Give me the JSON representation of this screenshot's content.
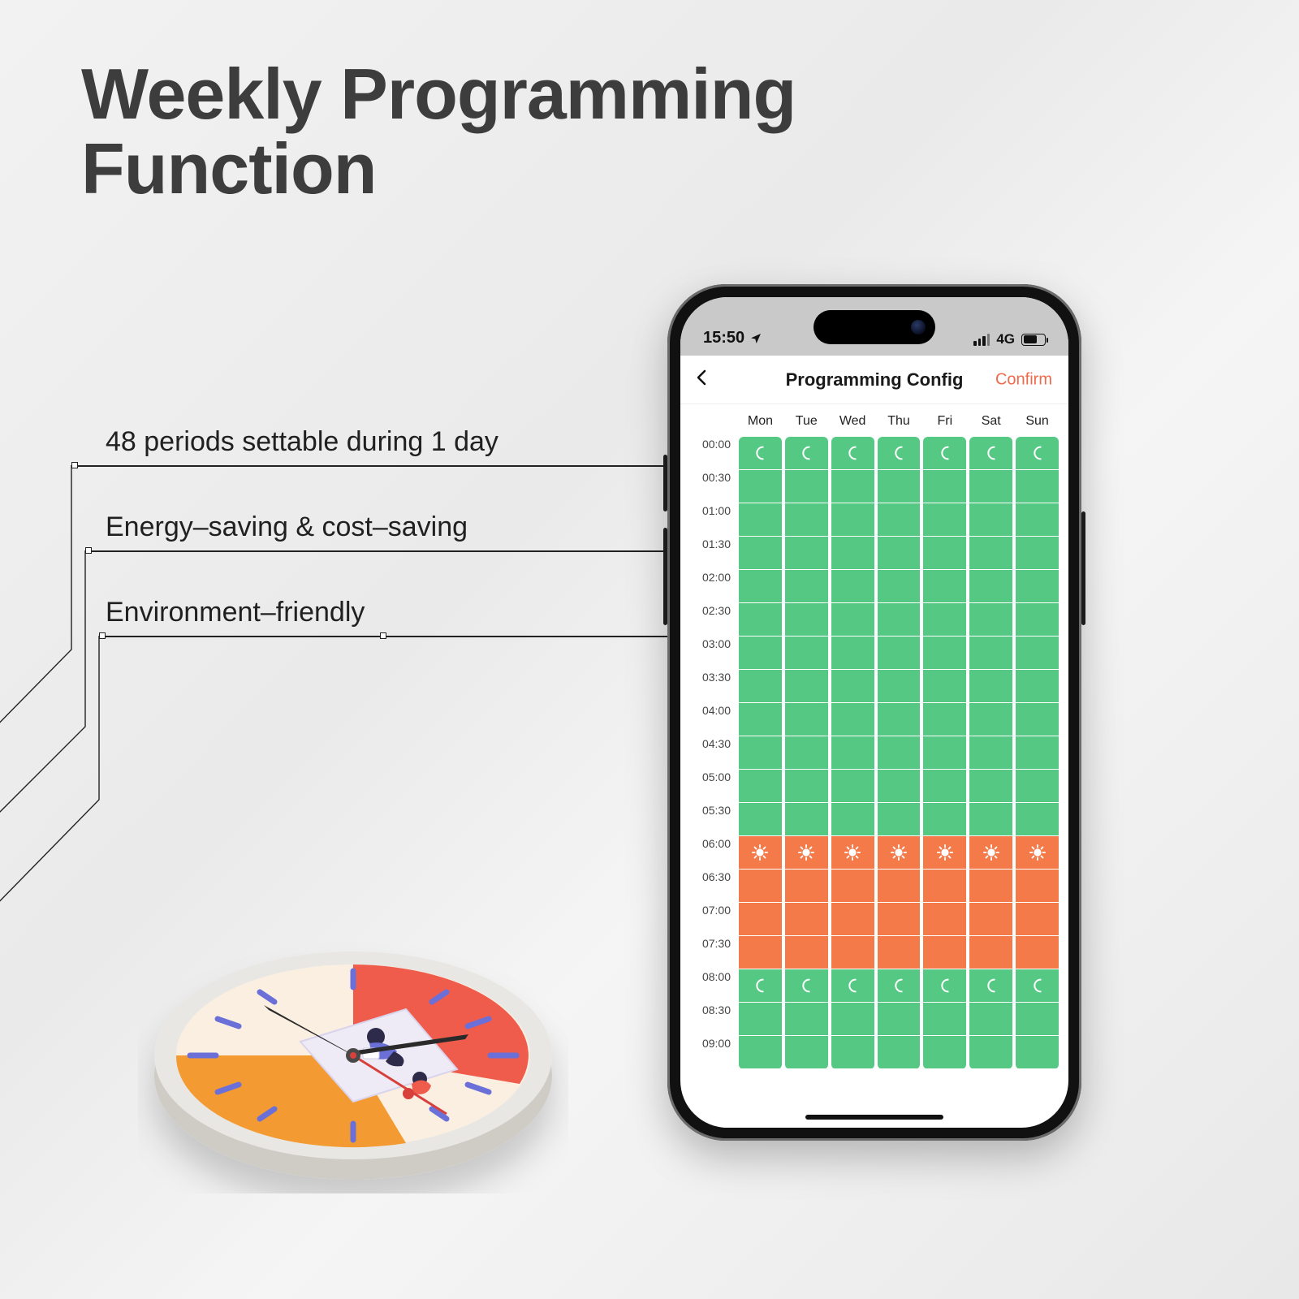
{
  "title_line1": "Weekly Programming",
  "title_line2": "Function",
  "callouts": [
    "48 periods settable during 1 day",
    "Energy–saving & cost–saving",
    "Environment–friendly"
  ],
  "phone": {
    "status_time": "15:50",
    "status_network": "4G",
    "nav_title": "Programming Config",
    "nav_confirm": "Confirm",
    "days": [
      "Mon",
      "Tue",
      "Wed",
      "Thu",
      "Fri",
      "Sat",
      "Sun"
    ],
    "times": [
      "00:00",
      "00:30",
      "01:00",
      "01:30",
      "02:00",
      "02:30",
      "03:00",
      "03:30",
      "04:00",
      "04:30",
      "05:00",
      "05:30",
      "06:00",
      "06:30",
      "07:00",
      "07:30",
      "08:00",
      "08:30",
      "09:00"
    ],
    "schedule_pattern": {
      "night_rows": [
        0,
        1,
        2,
        3,
        4,
        5,
        6,
        7,
        8,
        9,
        10,
        11
      ],
      "day_rows": [
        12,
        13,
        14,
        15
      ],
      "night2_rows": [
        16,
        17,
        18
      ],
      "moon_icon_rows": [
        0,
        16
      ],
      "sun_icon_rows": [
        12
      ]
    },
    "colors": {
      "night": "#55c983",
      "day": "#f47a4a",
      "confirm": "#ef6a4a"
    }
  },
  "clock": {
    "rim": "#e9e7e3",
    "face_top": "#fbefe1",
    "face_left": "#f39b33",
    "face_right": "#ef5b4c",
    "tick": "#6b6fd8",
    "hand": "#2b2b2b",
    "hand_red": "#d8403a",
    "blanket": "#e9e5f5"
  }
}
